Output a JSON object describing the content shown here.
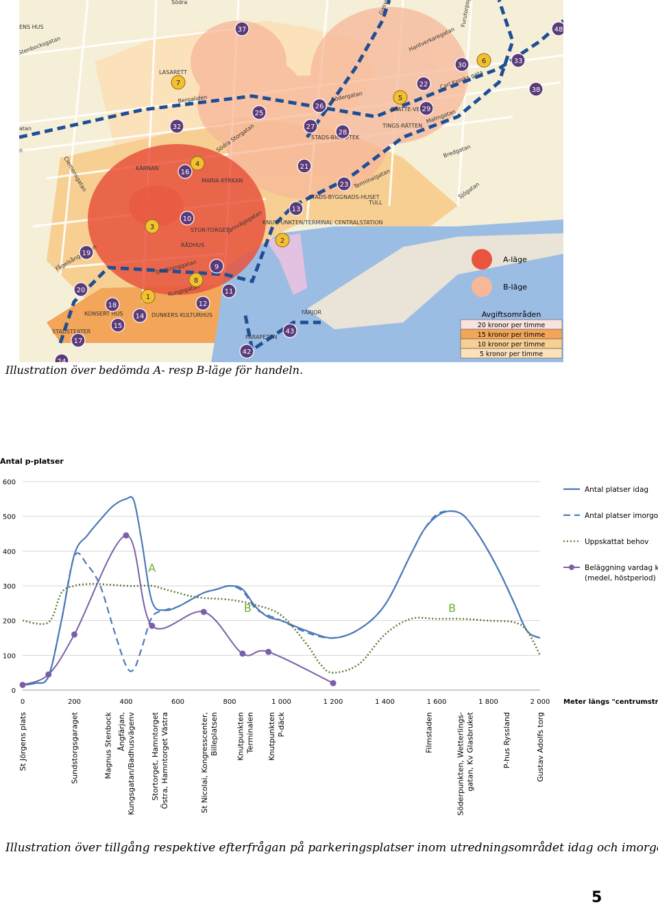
{
  "map": {
    "place_labels": [
      "ENS HUS",
      "Stenbocksgatan",
      "LASARETT",
      "Bergaliden",
      "Södra Storgatan",
      "KÄRNAN",
      "MARIA KYRKAN",
      "STOR-TORGET",
      "RÅDHUS",
      "Drottninggatan",
      "Järnvägsgatan",
      "KNUTPUNKTEN/TERMINAL CENTRALSTATION",
      "STADS-BYGGNADS-HUSET",
      "STADS-BIBLIOTEK",
      "Södergatan",
      "Hantverkaregatan",
      "SKATTE-VERKET",
      "TINGS-RÄTTEN",
      "Carl Krooks gata",
      "Malmgatan",
      "Bredgatan",
      "Terminalgatan",
      "TULL",
      "Sjögatan",
      "Fågelsångsgatan",
      "Clemensgatan",
      "Kungsgatan",
      "KONSERT HUS",
      "STADSTEATER",
      "DUNKERS KULTURHUS",
      "PARAPETEN",
      "FÄRJOR",
      "Södra",
      "Gasverks",
      "Furutorpsgatan",
      "atan",
      "n"
    ],
    "legend": {
      "a_label": "A-läge",
      "b_label": "B-läge",
      "fees_title": "Avgiftsområden",
      "fees": [
        "20 kronor per timme",
        "15 kronor per timme",
        "10 kronor per timme",
        "5 kronor per timme"
      ]
    },
    "markers_purple": [
      "37",
      "48",
      "25",
      "26",
      "27",
      "28",
      "30",
      "33",
      "38",
      "22",
      "29",
      "32",
      "16",
      "21",
      "23",
      "13",
      "10",
      "19",
      "9",
      "11",
      "12",
      "18",
      "20",
      "15",
      "14",
      "17",
      "24",
      "42",
      "43"
    ],
    "markers_yellow": [
      "7",
      "4",
      "5",
      "6",
      "3",
      "8",
      "1",
      "2"
    ],
    "colors": {
      "a_zone": "#e8543e",
      "b_zone": "#f7b89a",
      "fee20": "#f3a55a",
      "water": "#9cbde3",
      "marker": "#5a3a78",
      "marker_yellow": "#f2c030",
      "route": "#1f4e94"
    }
  },
  "caption1": "Illustration över bedömda A- resp B-läge för handeln.",
  "chart_data": {
    "type": "line",
    "title": "Antal p-platser",
    "xlabel": "Meter längs \"centrumstråk\"",
    "ylabel": "",
    "xlim": [
      0,
      2000
    ],
    "ylim": [
      0,
      600
    ],
    "xticks": [
      "0",
      "200",
      "400",
      "600",
      "800",
      "1 000",
      "1 200",
      "1 400",
      "1 600",
      "1 800",
      "2 000"
    ],
    "yticks": [
      "0",
      "100",
      "200",
      "300",
      "400",
      "500",
      "600"
    ],
    "grid": "horizontal",
    "legend_position": "right",
    "series": [
      {
        "name": "Antal platser idag",
        "style": "solid",
        "color": "#4a7ab8",
        "x": [
          0,
          50,
          100,
          150,
          200,
          250,
          300,
          350,
          400,
          430,
          460,
          500,
          550,
          600,
          650,
          700,
          750,
          800,
          850,
          900,
          950,
          1000,
          1100,
          1200,
          1300,
          1400,
          1500,
          1550,
          1600,
          1650,
          1700,
          1750,
          1800,
          1850,
          1900,
          1950,
          2000
        ],
        "y": [
          15,
          20,
          40,
          200,
          390,
          445,
          490,
          530,
          550,
          545,
          430,
          255,
          230,
          240,
          260,
          280,
          290,
          300,
          290,
          240,
          210,
          200,
          170,
          150,
          175,
          245,
          390,
          460,
          500,
          515,
          505,
          460,
          400,
          330,
          250,
          170,
          150
        ]
      },
      {
        "name": "Antal platser imorgon",
        "style": "dashed",
        "color": "#4a7ab8",
        "x": [
          0,
          50,
          100,
          150,
          200,
          250,
          300,
          350,
          400,
          430,
          460,
          500,
          550,
          600,
          650,
          700,
          750,
          800,
          850,
          900,
          950,
          1000,
          1100,
          1200,
          1300,
          1400,
          1500,
          1550,
          1600,
          1650,
          1700,
          1750,
          1800,
          1850,
          1900,
          1950,
          2000
        ],
        "y": [
          15,
          20,
          40,
          200,
          385,
          360,
          300,
          180,
          70,
          60,
          120,
          210,
          230,
          240,
          260,
          280,
          290,
          300,
          285,
          235,
          215,
          200,
          165,
          150,
          175,
          245,
          390,
          460,
          505,
          515,
          505,
          460,
          400,
          330,
          250,
          170,
          150
        ]
      },
      {
        "name": "Uppskattat behov",
        "style": "dotted",
        "color": "#5e7a34",
        "x": [
          0,
          100,
          150,
          200,
          250,
          300,
          400,
          450,
          500,
          550,
          600,
          650,
          700,
          800,
          900,
          1000,
          1100,
          1150,
          1200,
          1300,
          1400,
          1500,
          1600,
          1700,
          1800,
          1900,
          1950,
          2000
        ],
        "y": [
          200,
          195,
          280,
          300,
          305,
          305,
          300,
          300,
          300,
          290,
          280,
          270,
          265,
          260,
          245,
          215,
          130,
          75,
          50,
          75,
          160,
          205,
          205,
          205,
          200,
          195,
          170,
          100
        ]
      },
      {
        "name": "Beläggning vardag kl 12 (medel, höstperiod)",
        "style": "solid-markers",
        "color": "#7a5ea8",
        "x": [
          0,
          100,
          200,
          400,
          500,
          700,
          850,
          950,
          1200
        ],
        "y": [
          15,
          45,
          160,
          445,
          185,
          225,
          105,
          110,
          20
        ]
      }
    ],
    "annotations": [
      {
        "text": "A",
        "x": 500,
        "y": 340
      },
      {
        "text": "B",
        "x": 870,
        "y": 225
      },
      {
        "text": "B",
        "x": 1660,
        "y": 225
      }
    ],
    "locations": [
      {
        "x": 0,
        "label": "St Jörgens plats"
      },
      {
        "x": 200,
        "label": "Sundstorgsgaraget"
      },
      {
        "x": 330,
        "label": "Magnus Stenbock"
      },
      {
        "x": 400,
        "label": "Ångfärjan,\nKungsgatan/Badhusvägenv"
      },
      {
        "x": 530,
        "label": "Stortorget, Hamntorget\nÖstra, Hamntorget Västra"
      },
      {
        "x": 720,
        "label": "St Nicolai, Kongresscenter,\nBilleplatsen"
      },
      {
        "x": 860,
        "label": "Knutpunkten\nTerminalen"
      },
      {
        "x": 980,
        "label": "Knutpunkten\nP-däck"
      },
      {
        "x": 1570,
        "label": "Filmstaden"
      },
      {
        "x": 1710,
        "label": "Söderpunkten, Wetterlings-\ngatan, Kv Glasbruket"
      },
      {
        "x": 1870,
        "label": "P-hus Ryssland"
      },
      {
        "x": 2000,
        "label": "Gustav Adolfs torg"
      }
    ]
  },
  "caption2": "Illustration över tillgång respektive efterfrågan på parkeringsplatser inom utredningsområdet idag och imorgon.",
  "page_number": "5"
}
